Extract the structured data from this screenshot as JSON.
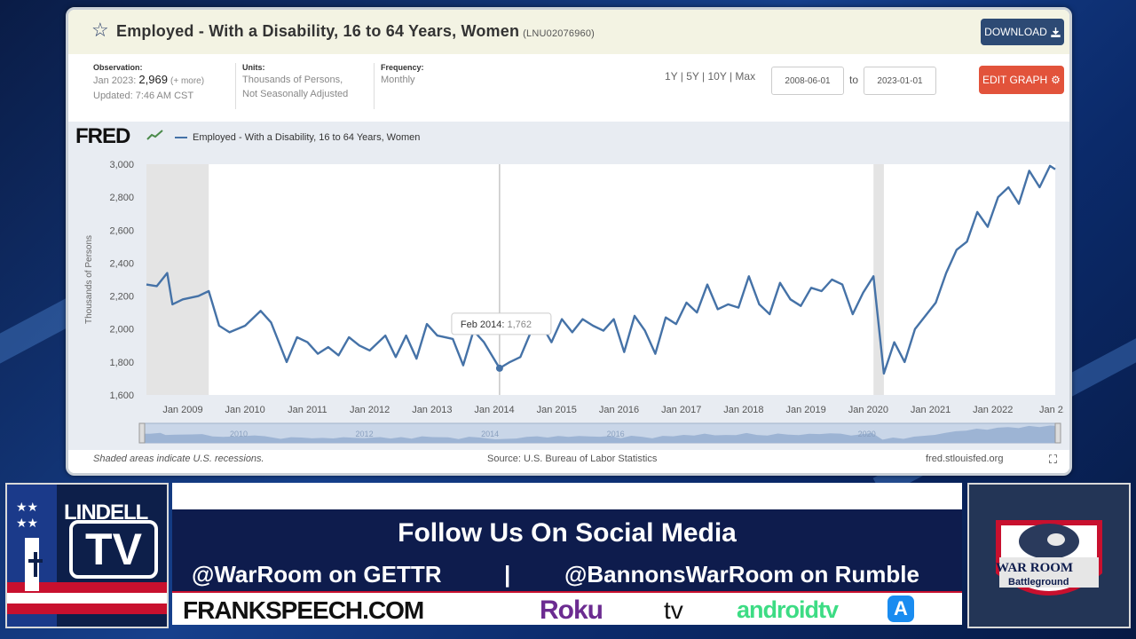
{
  "colors": {
    "series": "#4572a7",
    "recession_shade": "#e4e4e4",
    "download_bg": "#2d4a74",
    "edit_bg": "#e2533b",
    "banner_navy": "#0e1c4d"
  },
  "fred": {
    "title": "Employed - With a Disability, 16 to 64 Years, Women",
    "series_id": "(LNU02076960)",
    "download_label": "DOWNLOAD",
    "download_icon": "download-icon",
    "observation_key": "Observation:",
    "observation_date": "Jan 2023:",
    "observation_value": "2,969",
    "observation_more": "(+ more)",
    "updated": "Updated: 7:46 AM CST",
    "units_key": "Units:",
    "units_line1": "Thousands of Persons,",
    "units_line2": "Not Seasonally Adjusted",
    "frequency_key": "Frequency:",
    "frequency_value": "Monthly",
    "range_links": "1Y | 5Y | 10Y | Max",
    "date_from": "2008-06-01",
    "to_label": "to",
    "date_to": "2023-01-01",
    "edit_label": "EDIT GRAPH",
    "edit_icon": "gear-icon",
    "logo": "FRED",
    "legend_label": "Employed - With a Disability, 16 to 64 Years, Women",
    "tooltip_date": "Feb 2014:",
    "tooltip_value": "1,762",
    "recession_note": "Shaded areas indicate U.S. recessions.",
    "source_note": "Source: U.S. Bureau of Labor Statistics",
    "site_note": "fred.stlouisfed.org",
    "navigator_labels": [
      "2010",
      "2012",
      "2014",
      "2016",
      "2020"
    ]
  },
  "chart_data": {
    "type": "line",
    "ylabel": "Thousands of Persons",
    "ylim": [
      1600,
      3000
    ],
    "yticks": [
      "1,600",
      "1,800",
      "2,000",
      "2,200",
      "2,400",
      "2,600",
      "2,800",
      "3,000"
    ],
    "xticks": [
      "Jan 2009",
      "Jan 2010",
      "Jan 2011",
      "Jan 2012",
      "Jan 2013",
      "Jan 2014",
      "Jan 2015",
      "Jan 2016",
      "Jan 2017",
      "Jan 2018",
      "Jan 2019",
      "Jan 2020",
      "Jan 2021",
      "Jan 2022",
      "Jan 2..."
    ],
    "xlim": [
      "2008-06",
      "2023-01"
    ],
    "grid": false,
    "recessions": [
      [
        "2008-06",
        "2009-06"
      ],
      [
        "2020-02",
        "2020-04"
      ]
    ],
    "crosshair": "2014-02",
    "series": [
      {
        "name": "Employed - With a Disability, 16 to 64 Years, Women",
        "x": [
          "2008-06",
          "2008-08",
          "2008-10",
          "2008-11",
          "2009-01",
          "2009-04",
          "2009-06",
          "2009-08",
          "2009-10",
          "2010-01",
          "2010-04",
          "2010-06",
          "2010-09",
          "2010-11",
          "2011-01",
          "2011-03",
          "2011-05",
          "2011-07",
          "2011-09",
          "2011-11",
          "2012-01",
          "2012-04",
          "2012-06",
          "2012-08",
          "2012-10",
          "2012-12",
          "2013-02",
          "2013-05",
          "2013-07",
          "2013-09",
          "2013-11",
          "2014-02",
          "2014-04",
          "2014-06",
          "2014-08",
          "2014-10",
          "2014-12",
          "2015-02",
          "2015-04",
          "2015-06",
          "2015-08",
          "2015-10",
          "2015-12",
          "2016-02",
          "2016-04",
          "2016-06",
          "2016-08",
          "2016-10",
          "2016-12",
          "2017-02",
          "2017-04",
          "2017-06",
          "2017-08",
          "2017-10",
          "2017-12",
          "2018-02",
          "2018-04",
          "2018-06",
          "2018-08",
          "2018-10",
          "2018-12",
          "2019-02",
          "2019-04",
          "2019-06",
          "2019-08",
          "2019-10",
          "2019-12",
          "2020-02",
          "2020-04",
          "2020-06",
          "2020-08",
          "2020-10",
          "2020-12",
          "2021-02",
          "2021-04",
          "2021-06",
          "2021-08",
          "2021-10",
          "2021-12",
          "2022-02",
          "2022-04",
          "2022-06",
          "2022-08",
          "2022-10",
          "2022-12",
          "2023-01"
        ],
        "y": [
          2270,
          2260,
          2340,
          2150,
          2180,
          2200,
          2230,
          2020,
          1980,
          2020,
          2110,
          2040,
          1800,
          1950,
          1920,
          1850,
          1890,
          1840,
          1950,
          1900,
          1870,
          1960,
          1830,
          1960,
          1820,
          2030,
          1960,
          1940,
          1780,
          1990,
          1920,
          1762,
          1800,
          1830,
          1980,
          2030,
          1920,
          2060,
          1980,
          2060,
          2020,
          1990,
          2060,
          1860,
          2080,
          1990,
          1850,
          2070,
          2030,
          2160,
          2100,
          2270,
          2120,
          2150,
          2130,
          2320,
          2150,
          2090,
          2280,
          2180,
          2140,
          2250,
          2230,
          2300,
          2270,
          2090,
          2220,
          2320,
          1730,
          1920,
          1800,
          2000,
          2080,
          2160,
          2340,
          2480,
          2530,
          2710,
          2620,
          2800,
          2860,
          2760,
          2960,
          2860,
          2990,
          2969
        ]
      }
    ]
  },
  "lower_third": {
    "lindell_title": "LINDELL",
    "lindell_tv": "TV",
    "follow_text": "Follow Us On Social Media",
    "gettr_text": "@WarRoom on GETTR",
    "divider": "|",
    "rumble_text": "@BannonsWarRoom on Rumble",
    "franks_text": "FRANKSPEECH.COM",
    "roku_text": "Roku",
    "appletv_text": "tv",
    "androidtv_text": "androidtv",
    "appstore_icon": "app-store-icon",
    "warroom_title": "WAR ROOM",
    "warroom_sub": "Battleground"
  }
}
